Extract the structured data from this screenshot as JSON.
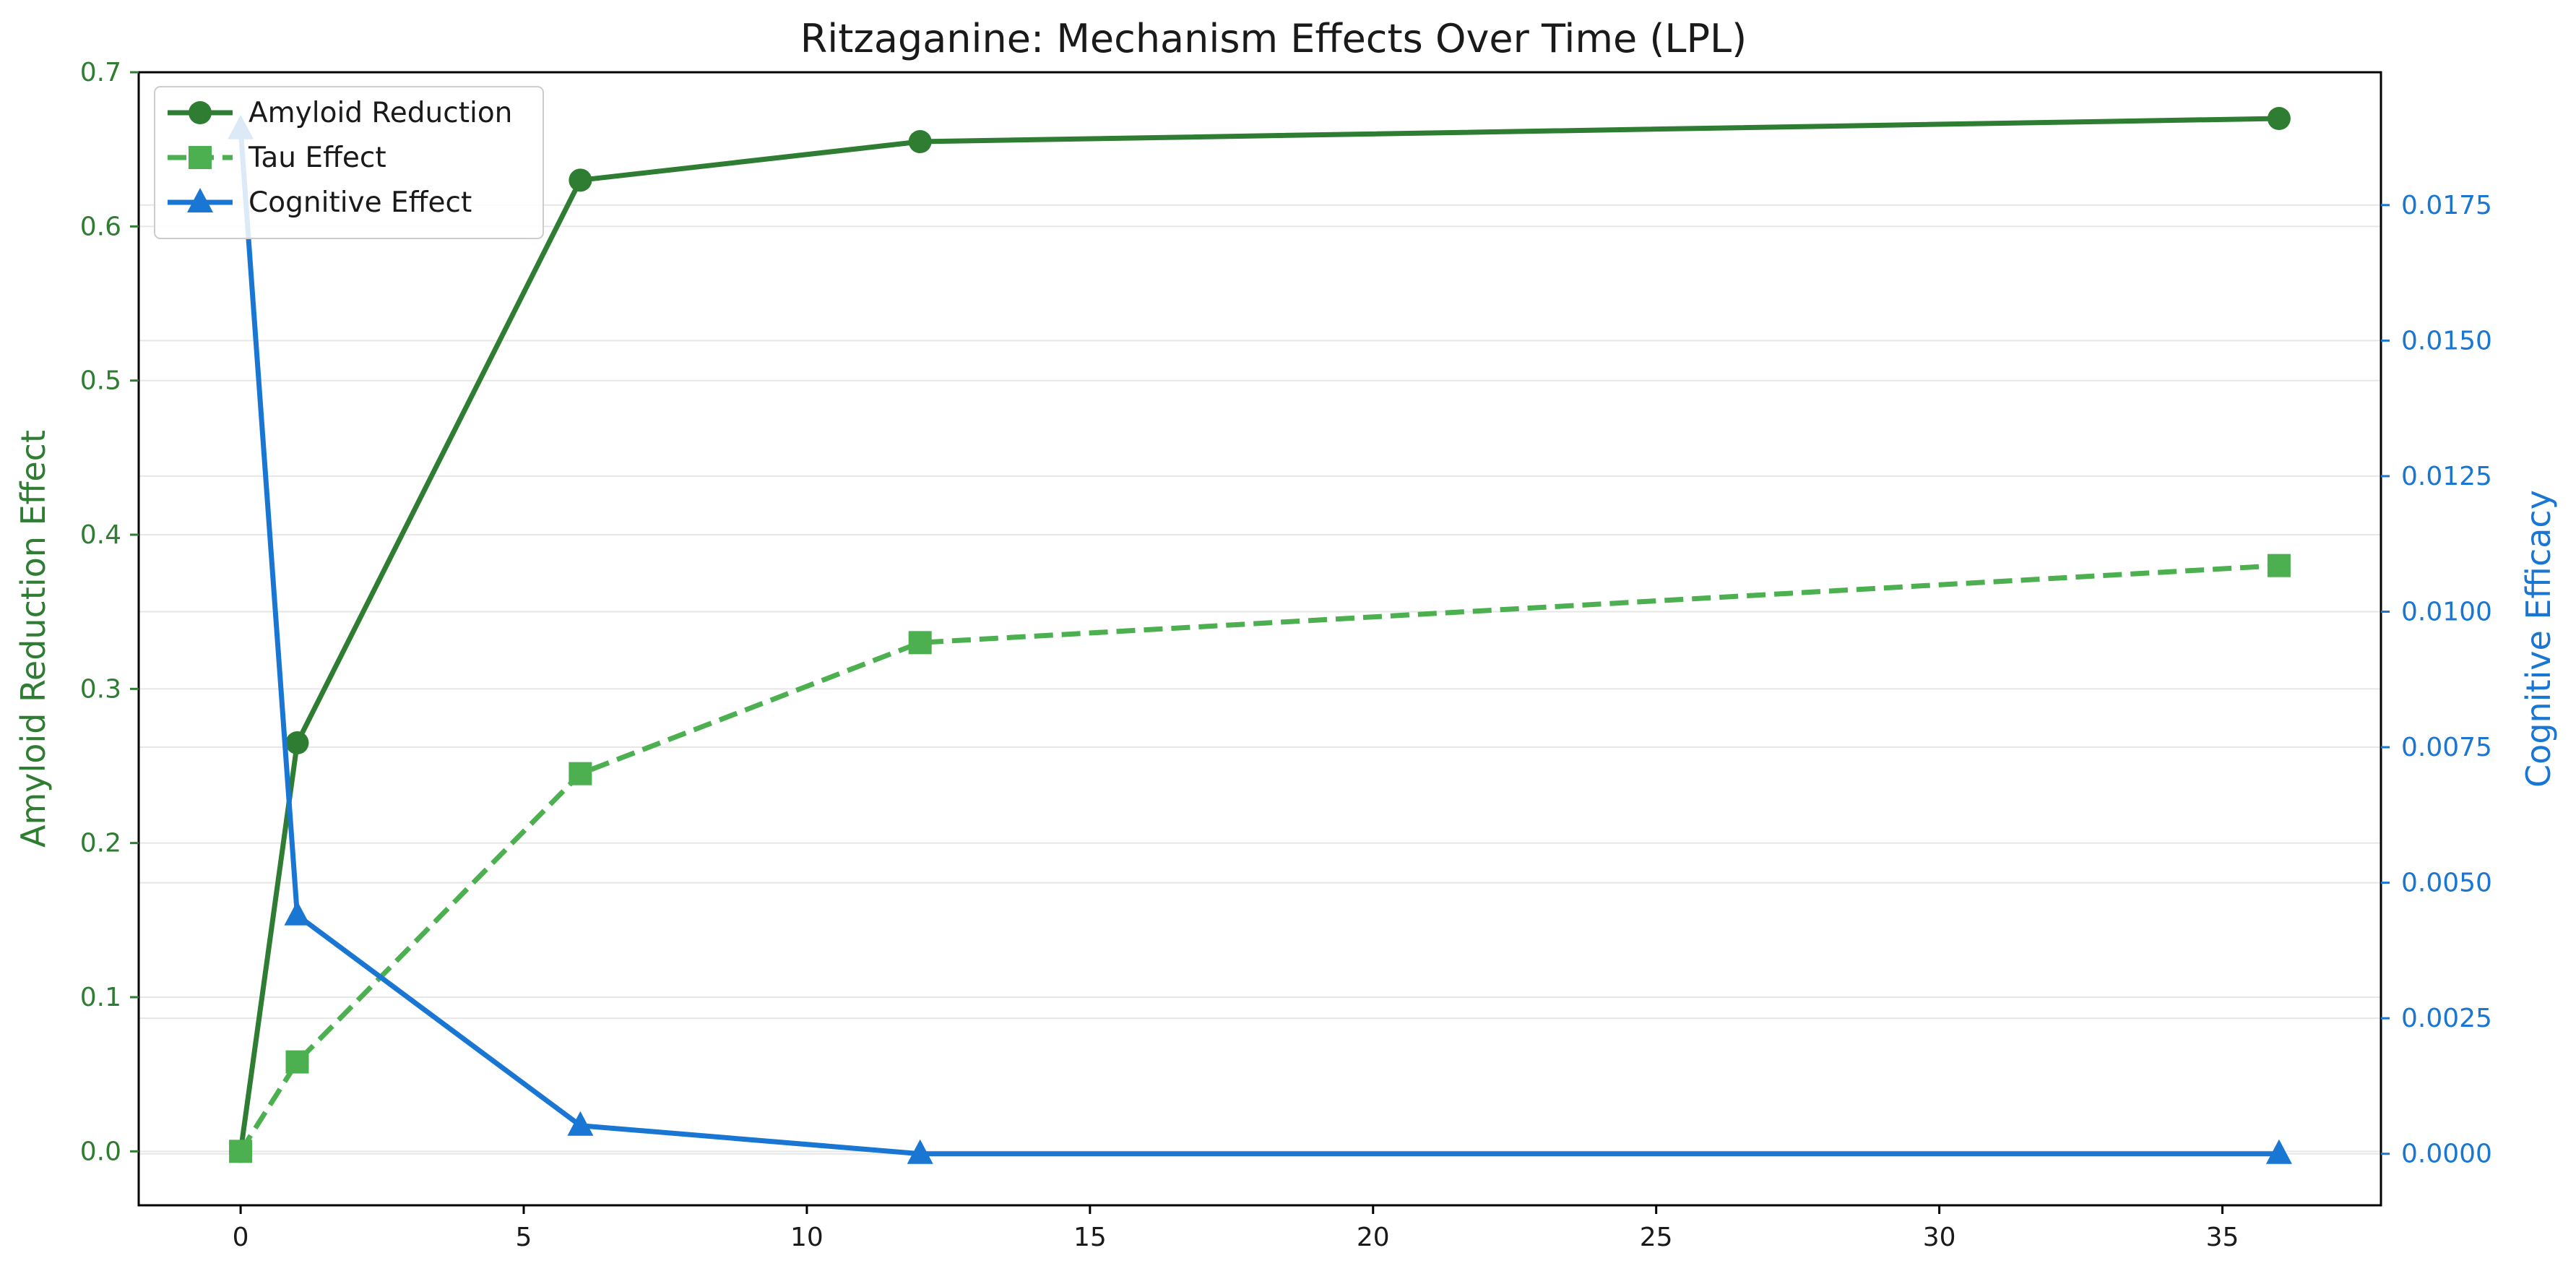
{
  "chart_data": {
    "type": "line",
    "title": "Ritzaganine: Mechanism Effects Over Time (LPL)",
    "xlabel": "",
    "ylabel": "Amyloid Reduction Effect",
    "ylabel_right": "Cognitive Efficacy",
    "x": [
      0,
      1,
      6,
      12,
      36
    ],
    "xlim": [
      -1.8,
      37.8
    ],
    "ylim": [
      -0.035,
      0.7
    ],
    "ylim_right": [
      -0.00095,
      0.01995
    ],
    "x_ticks": [
      "0",
      "5",
      "10",
      "15",
      "20",
      "25",
      "30",
      "35"
    ],
    "y_ticks_left": [
      "0.0",
      "0.1",
      "0.2",
      "0.3",
      "0.4",
      "0.5",
      "0.6",
      "0.7"
    ],
    "y_ticks_right": [
      "0.0000",
      "0.0025",
      "0.0050",
      "0.0075",
      "0.0100",
      "0.0125",
      "0.0150",
      "0.0175"
    ],
    "grid": "horizontal",
    "legend_position": "top-left",
    "series": [
      {
        "name": "Amyloid Reduction",
        "axis": "left",
        "values": [
          0.0,
          0.265,
          0.63,
          0.655,
          0.67
        ],
        "color": "#2e7d32",
        "marker": "circle",
        "linestyle": "solid"
      },
      {
        "name": "Tau Effect",
        "axis": "left",
        "values": [
          0.0,
          0.058,
          0.245,
          0.33,
          0.38
        ],
        "color": "#4caf50",
        "marker": "square",
        "linestyle": "dashed"
      },
      {
        "name": "Cognitive Effect",
        "axis": "right",
        "values": [
          0.0189,
          0.0044,
          0.00052,
          0.0,
          0.0
        ],
        "color": "#1976d2",
        "marker": "triangle",
        "linestyle": "solid"
      }
    ]
  },
  "colors": {
    "left_axis": "#2e7d32",
    "right_axis": "#1976d2",
    "grid": "#e6e6e6",
    "frame": "#000000"
  }
}
